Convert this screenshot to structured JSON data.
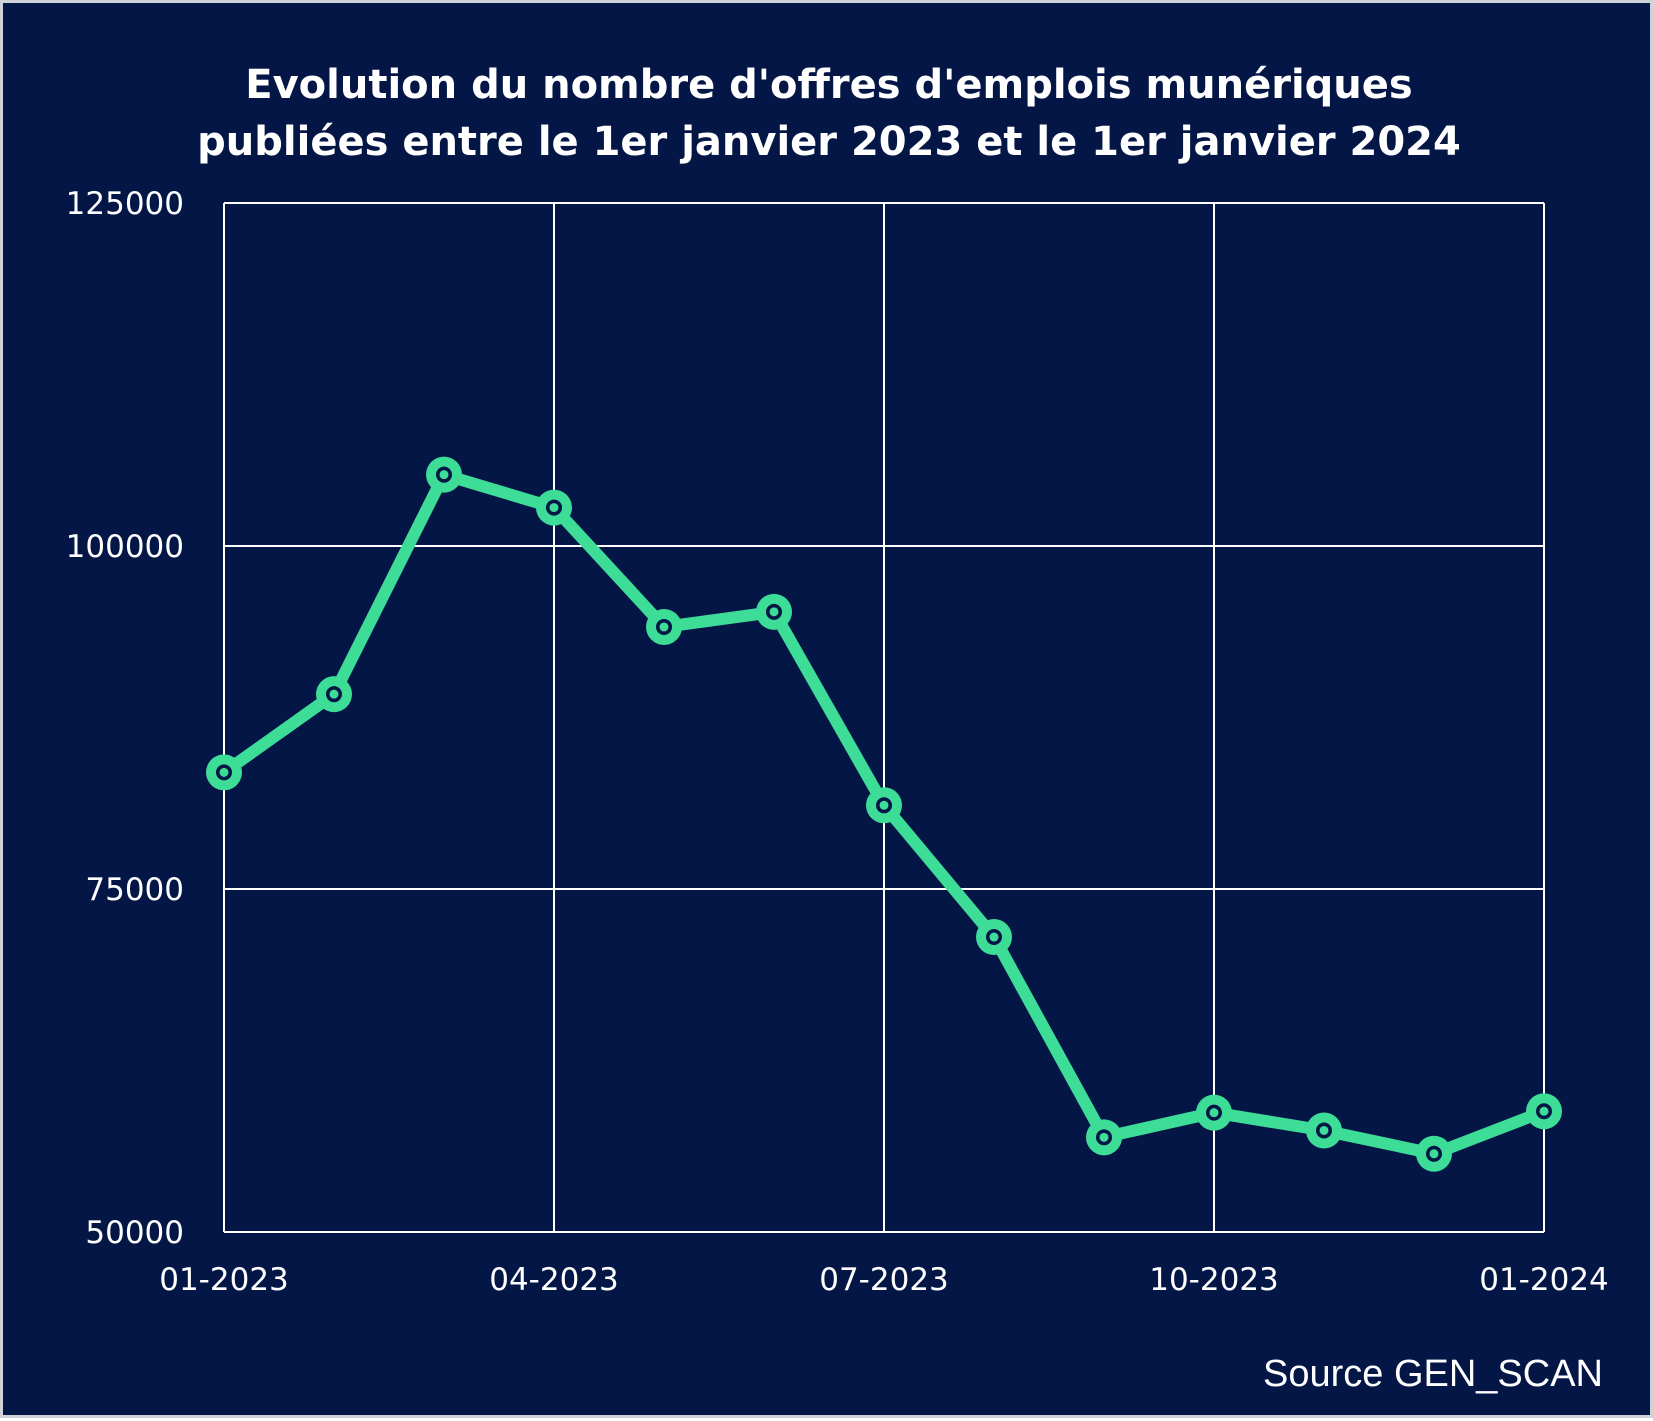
{
  "colors": {
    "background": "#031646",
    "series": "#3ddc97",
    "grid": "#ffffff",
    "text": "#ffffff"
  },
  "chart_data": {
    "type": "line",
    "title": "Evolution du nombre d'offres d'emplois munériques publiées entre le 1er janvier 2023 et le 1er janvier 2024",
    "title_lines": [
      "Evolution du nombre d'offres d'emplois munériques",
      "publiées entre le 1er janvier 2023 et le 1er janvier 2024"
    ],
    "xlabel": "",
    "ylabel": "",
    "source": "Source GEN_SCAN",
    "x_ticks": [
      "01-2023",
      "04-2023",
      "07-2023",
      "10-2023",
      "01-2024"
    ],
    "y_ticks": [
      50000,
      75000,
      100000,
      125000
    ],
    "ylim": [
      50000,
      125000
    ],
    "xlim": [
      "2023-01",
      "2024-01"
    ],
    "grid": true,
    "legend": "none",
    "series": [
      {
        "x": [
          "2023-01",
          "2023-02",
          "2023-03",
          "2023-04",
          "2023-05",
          "2023-06",
          "2023-07",
          "2023-08",
          "2023-09",
          "2023-10",
          "2023-11",
          "2023-12",
          "2024-01"
        ],
        "values": [
          83500,
          89200,
          105200,
          102800,
          94100,
          95200,
          81100,
          71500,
          56900,
          58700,
          57400,
          55700,
          58800
        ]
      }
    ]
  }
}
